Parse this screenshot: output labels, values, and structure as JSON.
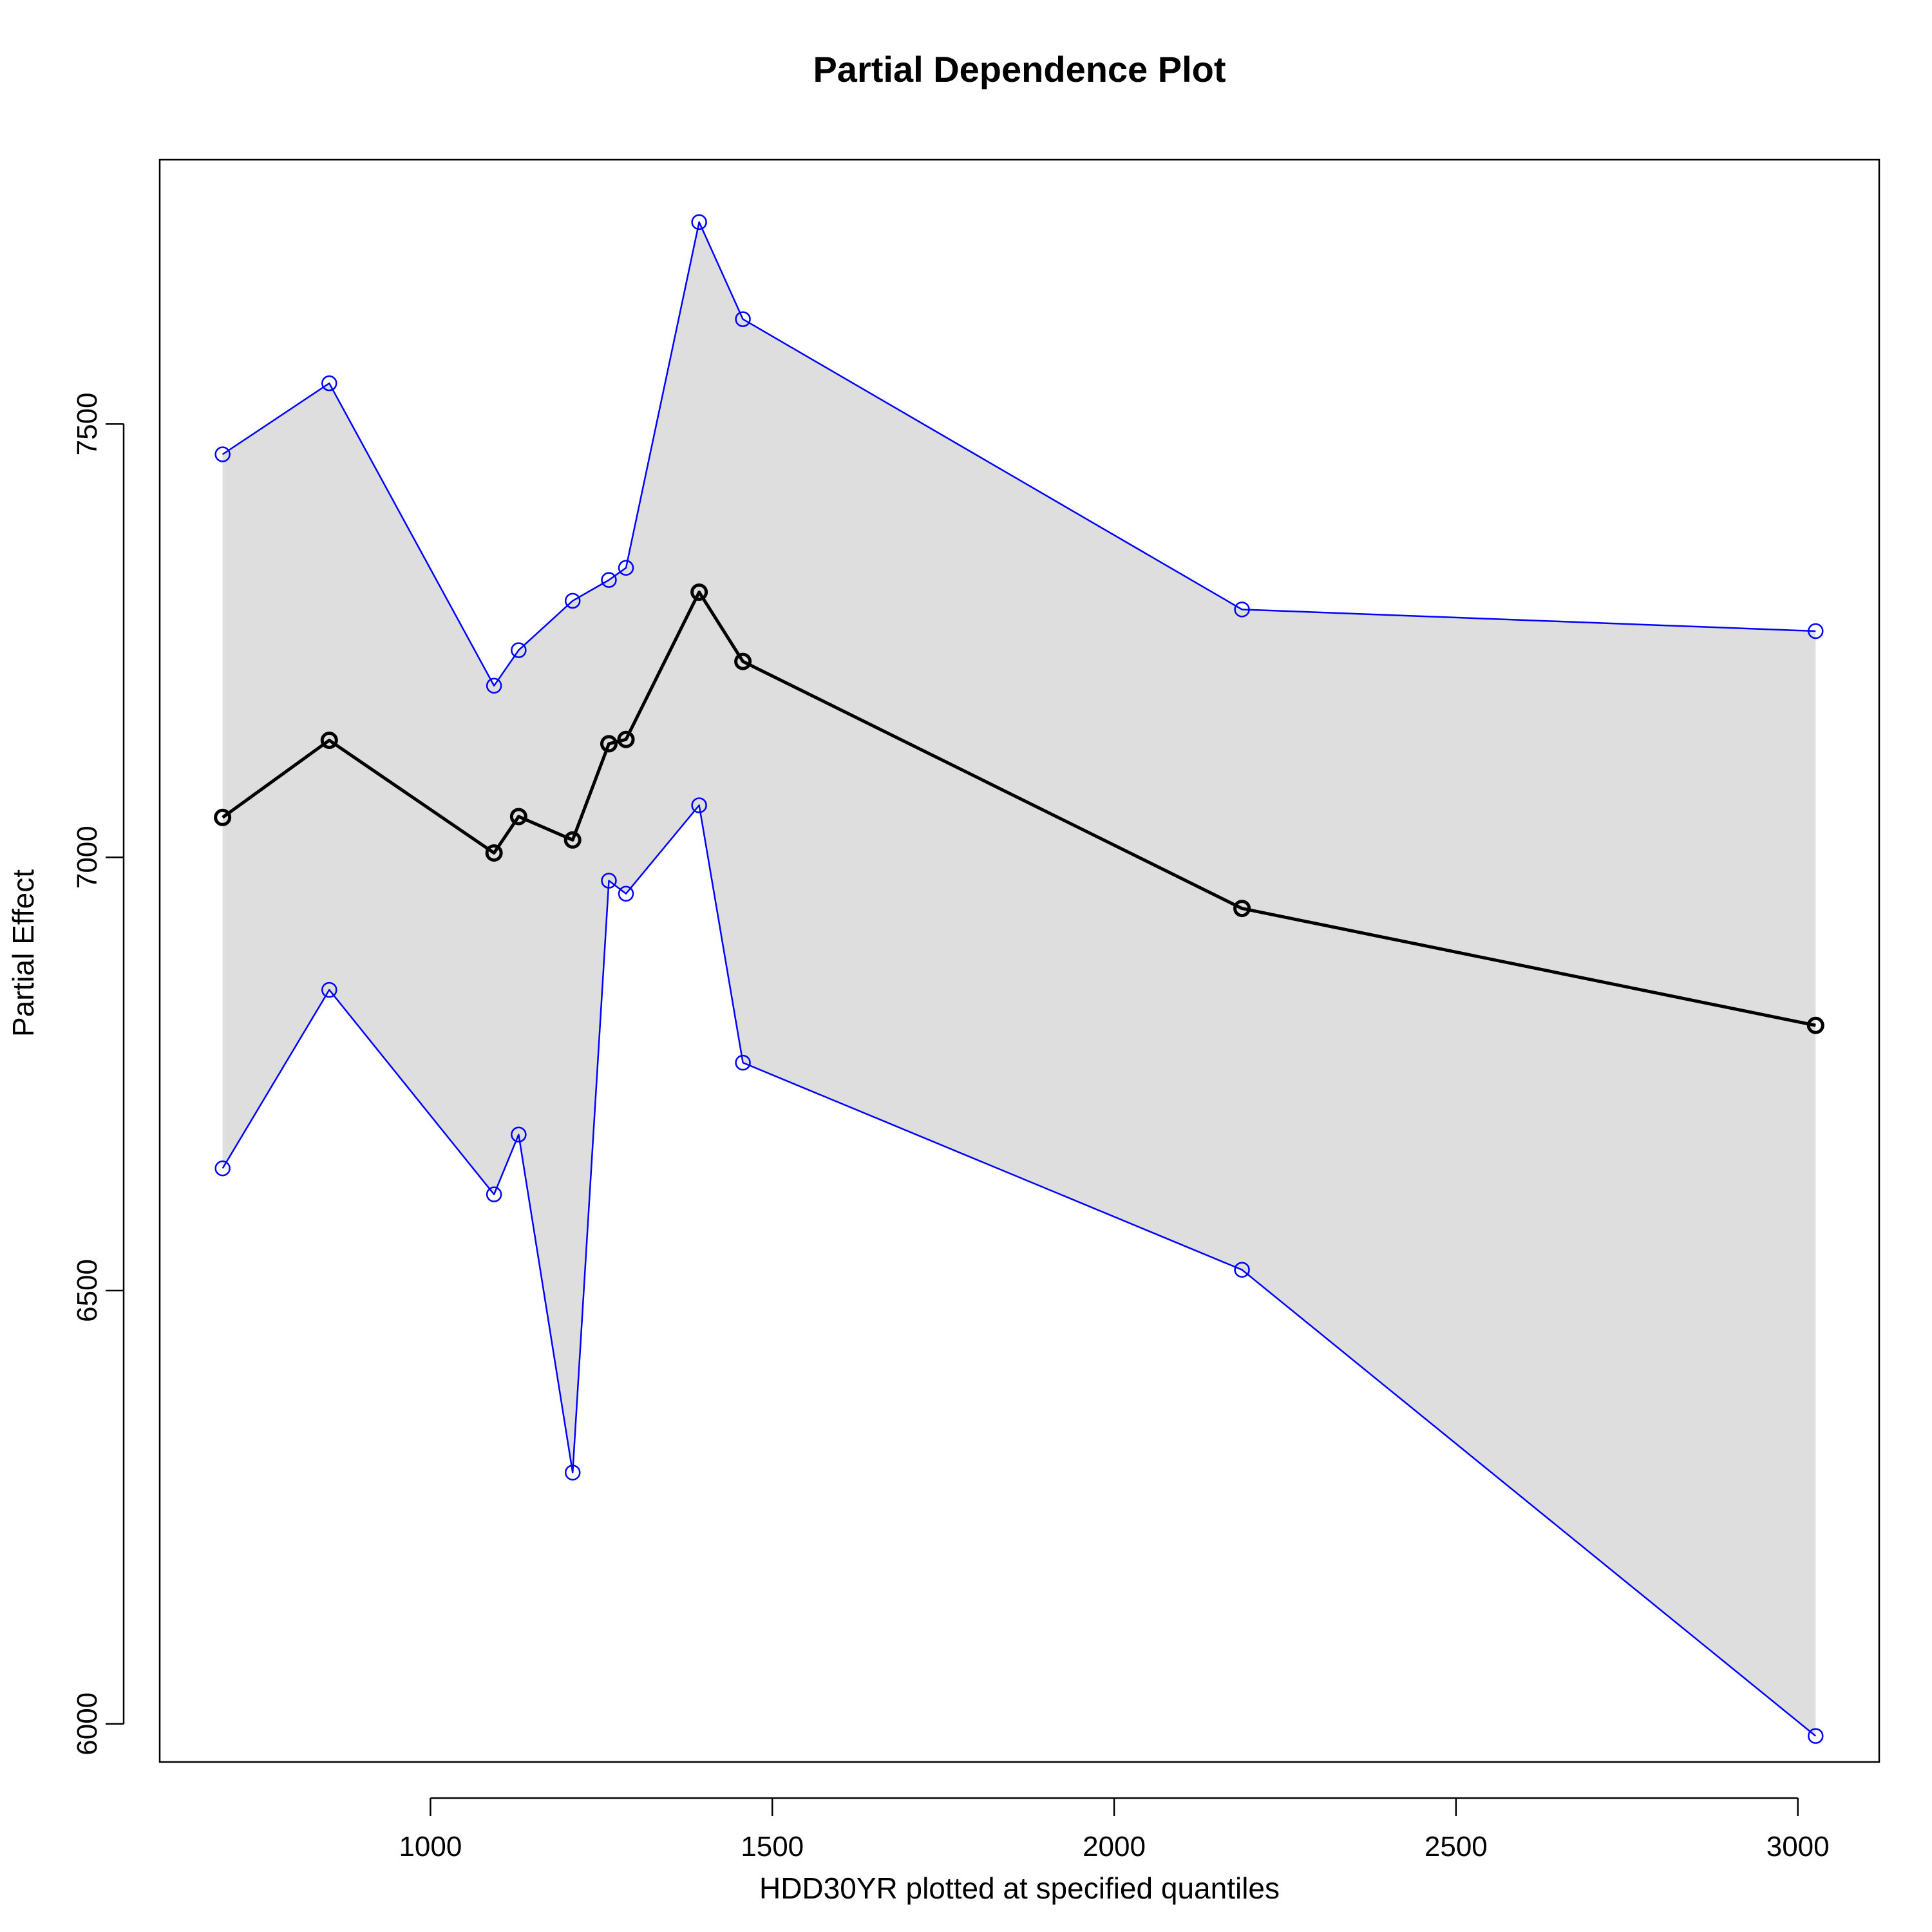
{
  "chart_data": {
    "type": "line",
    "title": "Partial Dependence Plot",
    "xlabel": "HDD30YR plotted at specified quantiles",
    "ylabel": "Partial Effect",
    "xlim": [
      604,
      3119
    ],
    "ylim": [
      5956,
      7805
    ],
    "xticks": [
      1000,
      1500,
      2000,
      2500,
      3000
    ],
    "yticks": [
      6000,
      6500,
      7000,
      7500
    ],
    "x": [
      696,
      852,
      1093,
      1129,
      1208,
      1261,
      1286,
      1393,
      1457,
      2187,
      3026
    ],
    "series": [
      {
        "role": "fit",
        "color": "#000000",
        "values": [
          7046,
          7135,
          7005,
          7047,
          7020,
          7131,
          7136,
          7306,
          7226,
          6941,
          6806
        ]
      },
      {
        "role": "upper",
        "color": "#0000ff",
        "values": [
          7465,
          7547,
          7198,
          7239,
          7296,
          7320,
          7334,
          7733,
          7621,
          7286,
          7261
        ]
      },
      {
        "role": "lower",
        "color": "#0000ff",
        "values": [
          6641,
          6847,
          6611,
          6680,
          6290,
          6973,
          6958,
          7060,
          6763,
          6524,
          5986
        ]
      }
    ],
    "band_color": "#dedede",
    "grid": false,
    "legend": "none"
  }
}
